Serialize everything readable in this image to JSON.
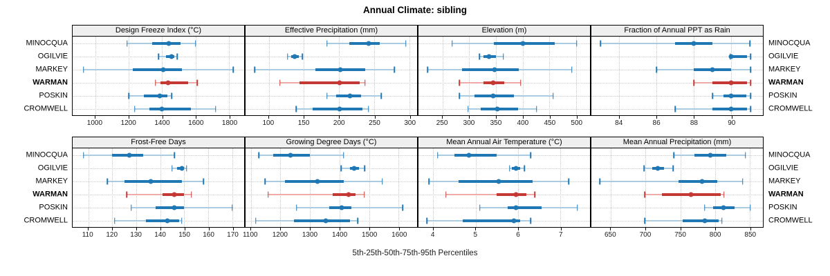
{
  "title": "Annual Climate: sibling",
  "caption": "5th-25th-50th-75th-95th Percentiles",
  "sites": [
    "MINOCQUA",
    "OGILVIE",
    "MARKEY",
    "WARMAN",
    "POSKIN",
    "CROMWELL"
  ],
  "highlight_site": "WARMAN",
  "colors": {
    "blue_dark": "#1F77B4",
    "blue_light": "#A9CCE3",
    "red_dark": "#C43934",
    "red_light": "#EFACA7",
    "grid": "#C9C9C9",
    "strip_bg": "#EFEFEF",
    "border": "#000000"
  },
  "chart_data": {
    "type": "interval",
    "subtype": "percentile-dotplot",
    "percentile_levels": [
      5,
      25,
      50,
      75,
      95
    ],
    "title": "Annual Climate: sibling",
    "xlabel": "5th-25th-50th-75th-95th Percentiles",
    "grid": "dotted",
    "layout": "2 rows x 4 columns trellis, site labels on left and right",
    "panels": [
      {
        "panel": "Design Freeze Index (°C)",
        "xlim": [
          865,
          1890
        ],
        "ticks": [
          1000,
          1200,
          1400,
          1600,
          1800
        ],
        "percentiles": {
          "MINOCQUA": [
            1190,
            1340,
            1440,
            1510,
            1600
          ],
          "OGILVIE": [
            1378,
            1422,
            1455,
            1472,
            1490
          ],
          "MARKEY": [
            930,
            1225,
            1405,
            1520,
            1825
          ],
          "WARMAN": [
            1360,
            1390,
            1435,
            1555,
            1610
          ],
          "POSKIN": [
            1200,
            1290,
            1385,
            1432,
            1458
          ],
          "CROMWELL": [
            1237,
            1325,
            1398,
            1570,
            1720
          ]
        }
      },
      {
        "panel": "Effective Precipitation (mm)",
        "xlim": [
          67,
          311
        ],
        "ticks": [
          100,
          150,
          200,
          250,
          300
        ],
        "percentiles": {
          "MINOCQUA": [
            183,
            215,
            242,
            258,
            295
          ],
          "OGILVIE": [
            127,
            132,
            137,
            143,
            148
          ],
          "MARKEY": [
            80,
            166,
            202,
            237,
            279
          ],
          "WARMAN": [
            116,
            144,
            201,
            229,
            237
          ],
          "POSKIN": [
            183,
            196,
            216,
            231,
            260
          ],
          "CROMWELL": [
            139,
            162,
            201,
            233,
            242
          ]
        }
      },
      {
        "panel": "Elevation (m)",
        "xlim": [
          205,
          526
        ],
        "ticks": [
          250,
          300,
          350,
          400,
          450,
          500
        ],
        "percentiles": {
          "MINOCQUA": [
            268,
            346,
            400,
            460,
            501
          ],
          "OGILVIE": [
            319,
            327,
            337,
            350,
            364
          ],
          "MARKEY": [
            222,
            286,
            347,
            393,
            492
          ],
          "WARMAN": [
            282,
            327,
            345,
            365,
            396
          ],
          "POSKIN": [
            282,
            310,
            345,
            384,
            457
          ],
          "CROMWELL": [
            298,
            321,
            353,
            391,
            426
          ]
        }
      },
      {
        "panel": "Fraction of Annual PPT as Rain",
        "xlim": [
          82.5,
          91.7
        ],
        "ticks": [
          84,
          86,
          88,
          90
        ],
        "percentiles": {
          "MINOCQUA": [
            83,
            87,
            88,
            89,
            91
          ],
          "OGILVIE": [
            89.95,
            90,
            90,
            90.85,
            91.05
          ],
          "MARKEY": [
            86,
            88,
            89,
            90,
            91.05
          ],
          "WARMAN": [
            88,
            89,
            90,
            90.85,
            91.05
          ],
          "POSKIN": [
            89,
            89.6,
            90,
            90.8,
            91.05
          ],
          "CROMWELL": [
            87,
            89,
            90,
            90.85,
            91.05
          ]
        }
      },
      {
        "panel": "Frost-Free Days",
        "xlim": [
          103.5,
          175
        ],
        "ticks": [
          110,
          120,
          130,
          140,
          150,
          160,
          170
        ],
        "percentiles": {
          "MINOCQUA": [
            108,
            120,
            127,
            133,
            146
          ],
          "OGILVIE": [
            145,
            147,
            149,
            150,
            151
          ],
          "MARKEY": [
            118,
            125,
            136,
            149,
            158
          ],
          "WARMAN": [
            126,
            141,
            146,
            150,
            153
          ],
          "POSKIN": [
            128,
            138,
            146,
            150,
            170
          ],
          "CROMWELL": [
            121,
            134,
            143,
            148,
            149
          ]
        }
      },
      {
        "panel": "Growing Degree Days (°C)",
        "xlim": [
          1082,
          1662
        ],
        "ticks": [
          1100,
          1200,
          1300,
          1400,
          1500,
          1600
        ],
        "percentiles": {
          "MINOCQUA": [
            1127,
            1175,
            1233,
            1300,
            1413
          ],
          "OGILVIE": [
            1405,
            1435,
            1450,
            1465,
            1485
          ],
          "MARKEY": [
            1148,
            1215,
            1326,
            1413,
            1544
          ],
          "WARMAN": [
            1159,
            1376,
            1430,
            1455,
            1484
          ],
          "POSKIN": [
            1254,
            1364,
            1407,
            1440,
            1614
          ],
          "CROMWELL": [
            1117,
            1246,
            1354,
            1436,
            1461
          ]
        }
      },
      {
        "panel": "Mean Annual Air Temperature (°C)",
        "xlim": [
          3.65,
          7.7
        ],
        "ticks": [
          4,
          5,
          6,
          7
        ],
        "percentiles": {
          "MINOCQUA": [
            4.1,
            4.5,
            4.85,
            5.5,
            6.3
          ],
          "OGILVIE": [
            5.8,
            5.85,
            5.95,
            6.05,
            6.15
          ],
          "MARKEY": [
            3.9,
            4.6,
            5.55,
            6.35,
            7.2
          ],
          "WARMAN": [
            4.3,
            5.5,
            5.95,
            6.2,
            6.4
          ],
          "POSKIN": [
            5.1,
            5.75,
            5.95,
            6.55,
            7.4
          ],
          "CROMWELL": [
            3.85,
            4.7,
            5.9,
            6.05,
            6.3
          ]
        }
      },
      {
        "panel": "Mean Annual Precipitation (mm)",
        "xlim": [
          622,
          869
        ],
        "ticks": [
          650,
          700,
          750,
          800,
          850
        ],
        "percentiles": {
          "MINOCQUA": [
            741,
            770,
            793,
            816,
            844
          ],
          "OGILVIE": [
            698,
            710,
            718,
            727,
            740
          ],
          "MARKEY": [
            634,
            747,
            781,
            803,
            840
          ],
          "WARMAN": [
            699,
            724,
            765,
            808,
            813
          ],
          "POSKIN": [
            785,
            797,
            812,
            828,
            851
          ],
          "CROMWELL": [
            699,
            753,
            785,
            805,
            810
          ]
        }
      }
    ]
  }
}
